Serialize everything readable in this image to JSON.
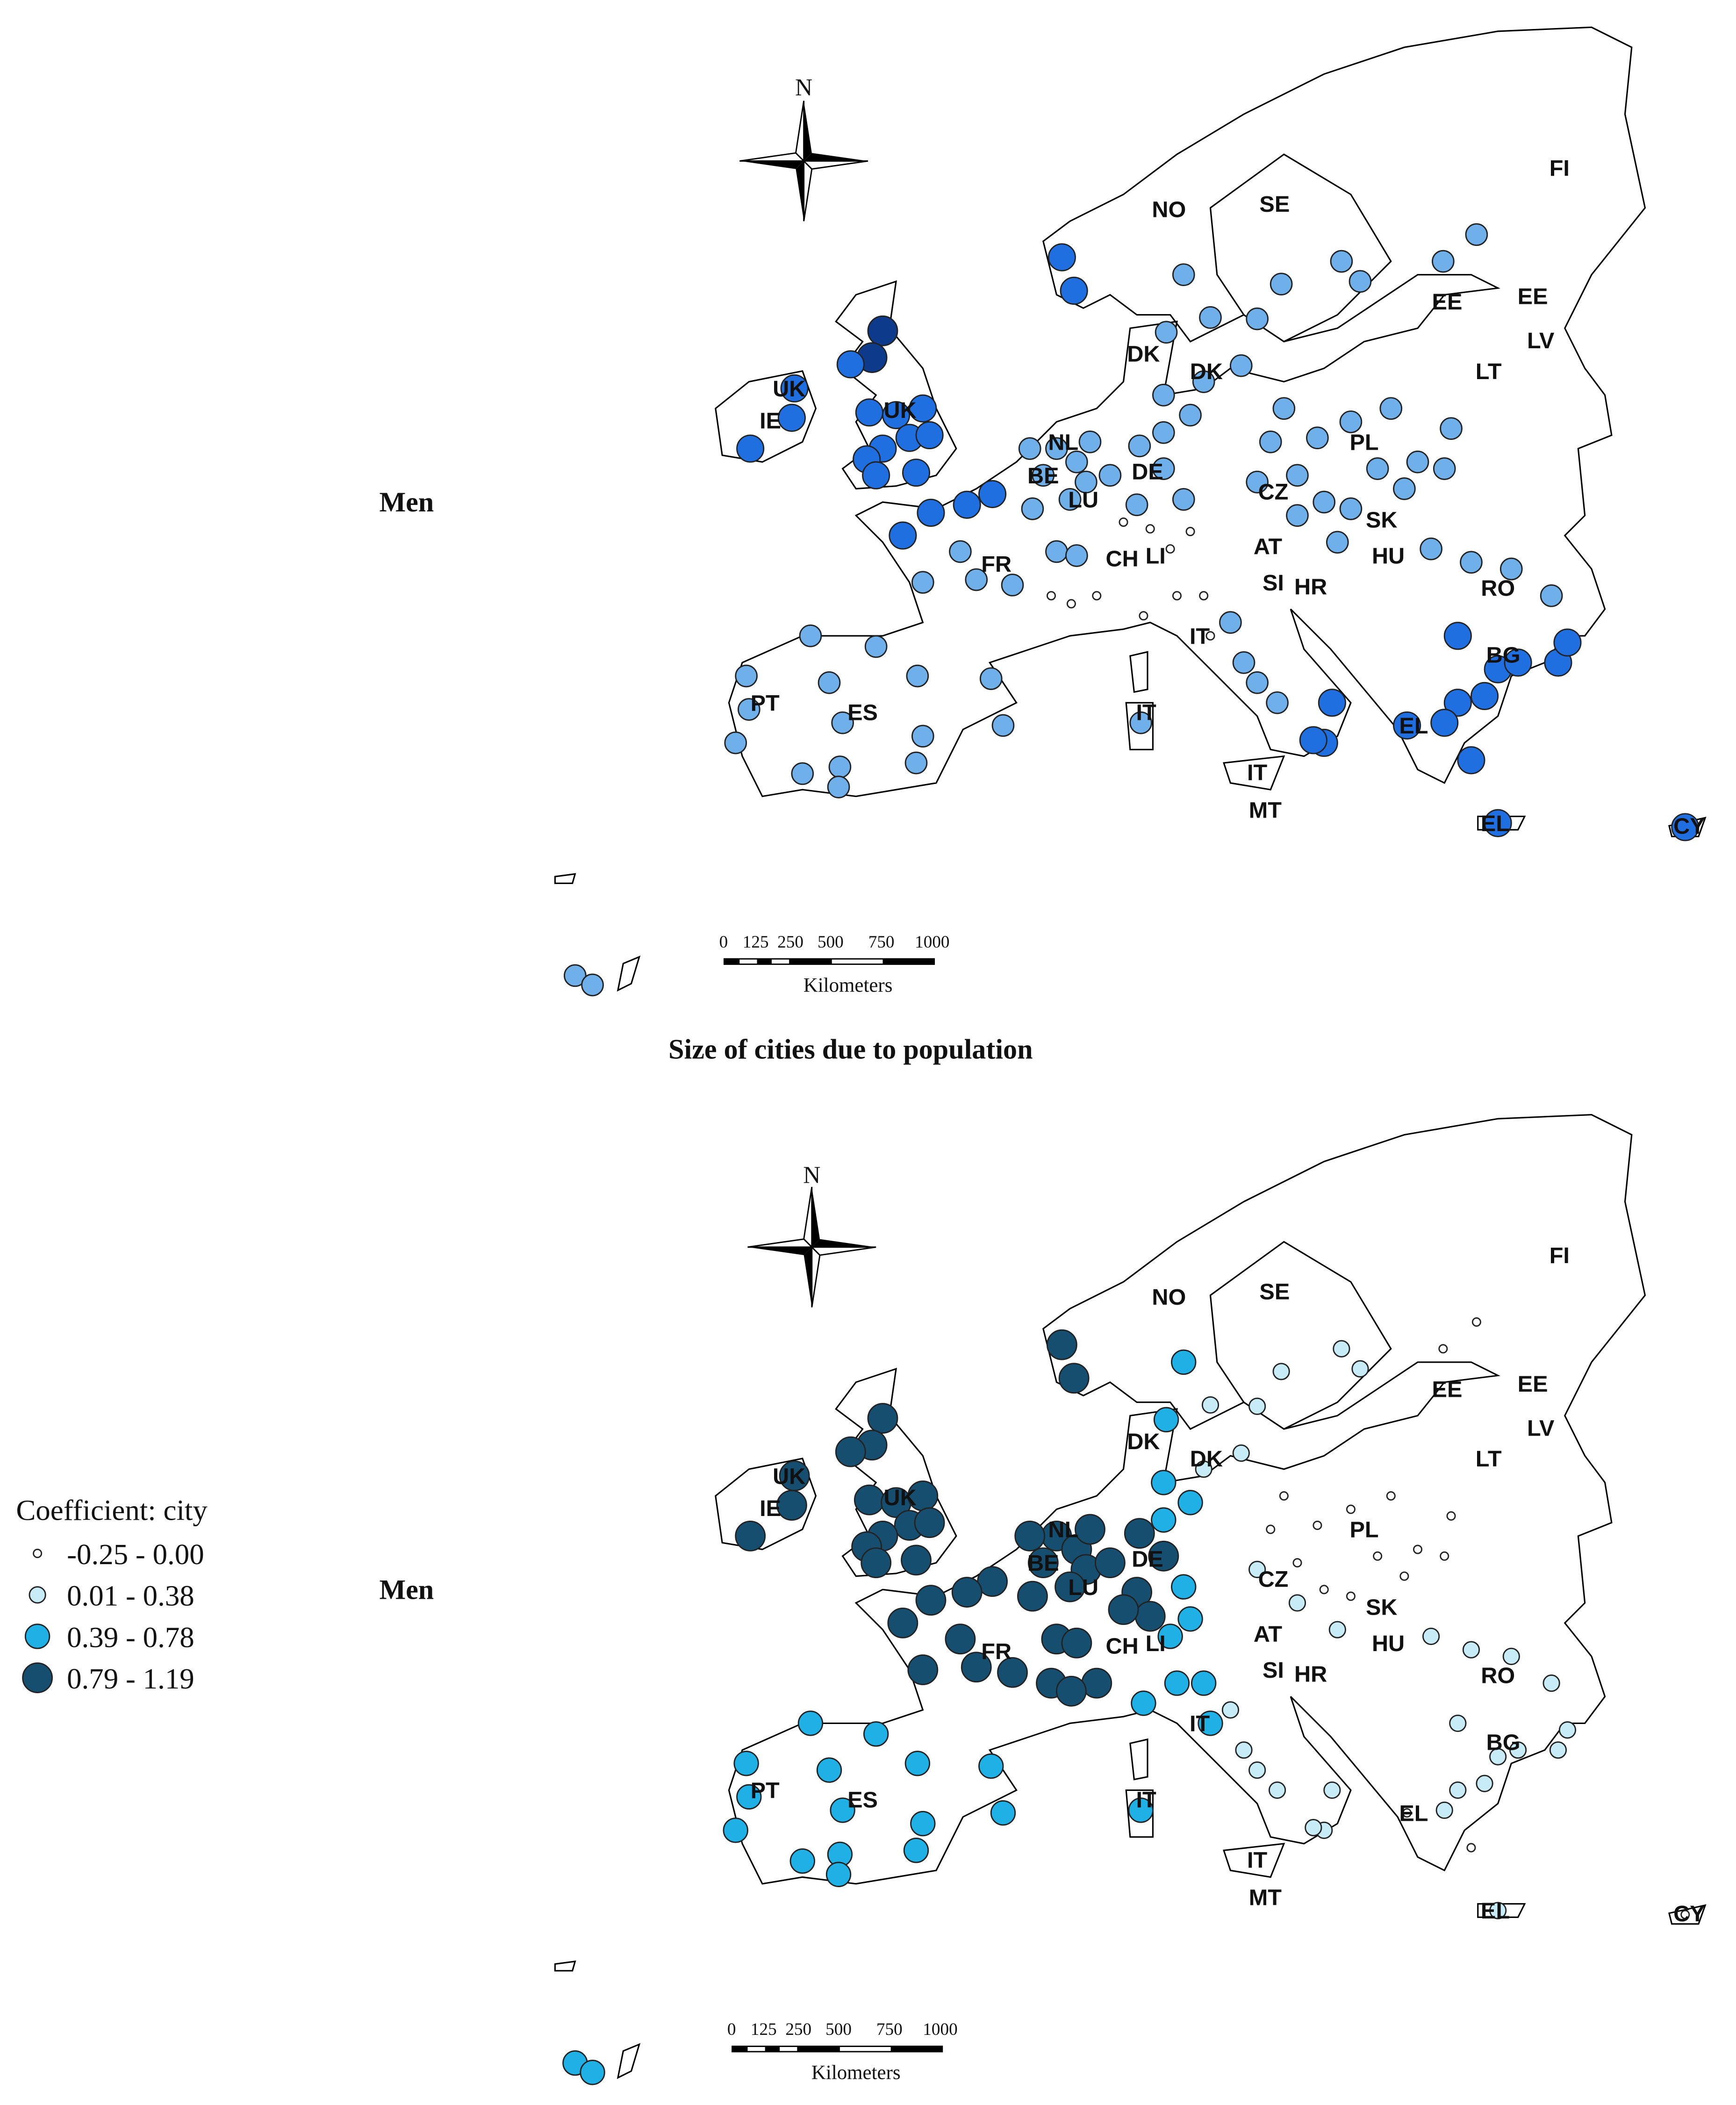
{
  "panels": [
    {
      "row_label": "Men",
      "north": "N",
      "countries": [
        "NO",
        "SE",
        "FI",
        "EE",
        "EE",
        "LV",
        "LT",
        "DK",
        "DK",
        "UK",
        "IE",
        "UK",
        "NL",
        "BE",
        "LU",
        "DE",
        "PL",
        "CZ",
        "SK",
        "AT",
        "HU",
        "SI",
        "HR",
        "RO",
        "FR",
        "CH",
        "LI",
        "IT",
        "BG",
        "PT",
        "ES",
        "IT",
        "EL",
        "IT",
        "MT",
        "EL",
        "CY"
      ],
      "scale": {
        "ticks": [
          "0",
          "125",
          "250",
          "500",
          "750",
          "1000"
        ],
        "unit": "Kilometers"
      }
    },
    {
      "row_label": "Men",
      "north": "N",
      "countries": [
        "NO",
        "SE",
        "FI",
        "EE",
        "EE",
        "LV",
        "LT",
        "DK",
        "DK",
        "UK",
        "IE",
        "UK",
        "NL",
        "BE",
        "LU",
        "DE",
        "PL",
        "CZ",
        "SK",
        "AT",
        "HU",
        "SI",
        "HR",
        "RO",
        "FR",
        "CH",
        "LI",
        "IT",
        "BG",
        "PT",
        "ES",
        "IT",
        "EL",
        "IT",
        "MT",
        "EL",
        "CY"
      ],
      "scale": {
        "ticks": [
          "0",
          "125",
          "250",
          "500",
          "750",
          "1000"
        ],
        "unit": "Kilometers"
      }
    }
  ],
  "caption": "Size of cities due to population",
  "legend": {
    "title": "Coefficient: city",
    "items": [
      "-0.25 - 0.00",
      "0.01 - 0.38",
      "0.39 - 0.78",
      "0.79 - 1.19"
    ]
  }
}
